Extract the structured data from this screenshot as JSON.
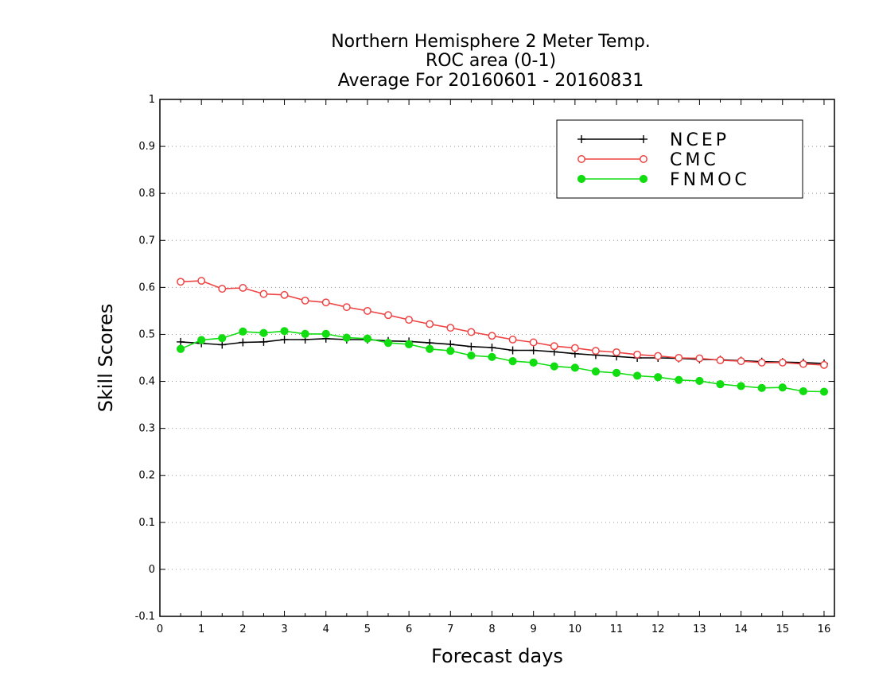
{
  "chart_data": {
    "type": "line",
    "title_lines": [
      "Northern Hemisphere 2 Meter Temp.",
      "ROC area (0-1)",
      "Average For 20160601 - 20160831"
    ],
    "xlabel": "Forecast days",
    "ylabel": "Skill Scores",
    "xlim": [
      0,
      16.25
    ],
    "ylim": [
      -0.1,
      1
    ],
    "xticks": [
      "0",
      "1",
      "2",
      "3",
      "4",
      "5",
      "6",
      "7",
      "8",
      "9",
      "10",
      "11",
      "12",
      "13",
      "14",
      "15",
      "16"
    ],
    "yticks": [
      "-0.1",
      "0",
      "0.1",
      "0.2",
      "0.3",
      "0.4",
      "0.5",
      "0.6",
      "0.7",
      "0.8",
      "0.9",
      "1"
    ],
    "grid": "horizontal-dotted",
    "legend_position": "top-right",
    "x": [
      0.5,
      1,
      1.5,
      2,
      2.5,
      3,
      3.5,
      4,
      4.5,
      5,
      5.5,
      6,
      6.5,
      7,
      7.5,
      8,
      8.5,
      9,
      9.5,
      10,
      10.5,
      11,
      11.5,
      12,
      12.5,
      13,
      13.5,
      14,
      14.5,
      15,
      15.5,
      16
    ],
    "series": [
      {
        "name": "NCEP",
        "color": "#000000",
        "marker": "plus",
        "values": [
          0.484,
          0.481,
          0.478,
          0.483,
          0.484,
          0.489,
          0.489,
          0.491,
          0.489,
          0.489,
          0.486,
          0.485,
          0.482,
          0.479,
          0.474,
          0.472,
          0.466,
          0.466,
          0.463,
          0.459,
          0.456,
          0.453,
          0.45,
          0.45,
          0.449,
          0.447,
          0.446,
          0.444,
          0.442,
          0.441,
          0.44,
          0.438
        ]
      },
      {
        "name": "CMC",
        "color": "#ee4444",
        "marker": "open-circle",
        "values": [
          0.612,
          0.614,
          0.597,
          0.599,
          0.586,
          0.584,
          0.572,
          0.568,
          0.558,
          0.55,
          0.541,
          0.531,
          0.522,
          0.514,
          0.505,
          0.497,
          0.489,
          0.483,
          0.475,
          0.471,
          0.465,
          0.462,
          0.457,
          0.454,
          0.45,
          0.449,
          0.445,
          0.443,
          0.44,
          0.44,
          0.437,
          0.435
        ]
      },
      {
        "name": "FNMOC",
        "color": "#11dd11",
        "marker": "filled-circle",
        "values": [
          0.469,
          0.488,
          0.492,
          0.506,
          0.503,
          0.507,
          0.501,
          0.501,
          0.493,
          0.491,
          0.482,
          0.479,
          0.469,
          0.465,
          0.455,
          0.452,
          0.443,
          0.44,
          0.432,
          0.429,
          0.421,
          0.418,
          0.412,
          0.409,
          0.403,
          0.401,
          0.394,
          0.39,
          0.386,
          0.387,
          0.379,
          0.378
        ]
      }
    ]
  }
}
